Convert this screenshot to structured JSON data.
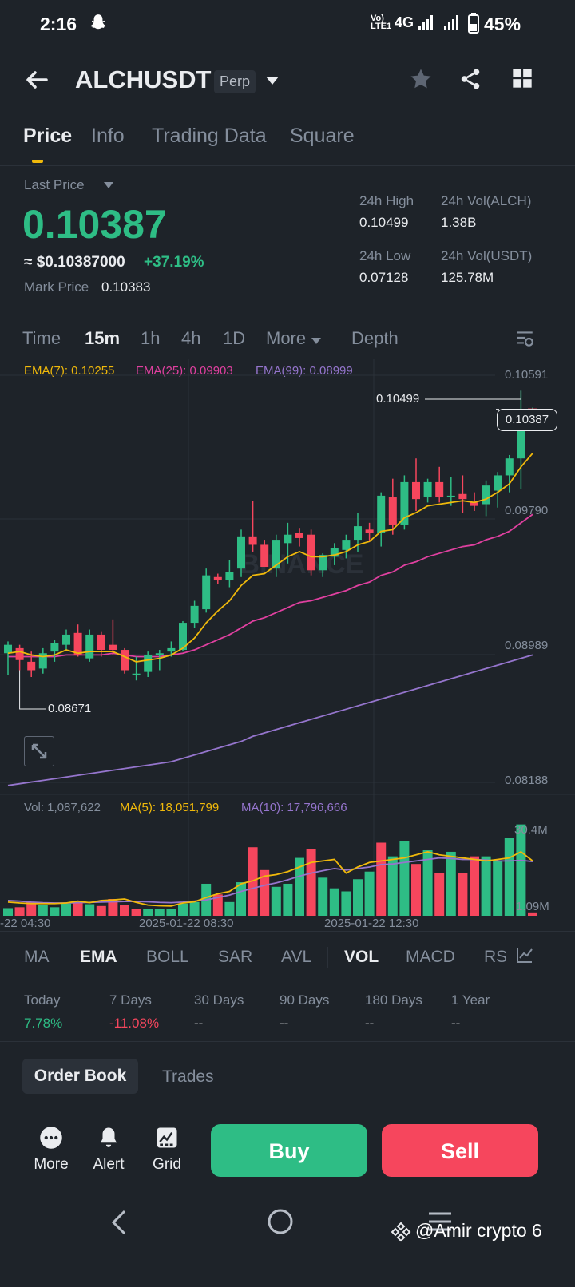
{
  "status": {
    "time": "2:16",
    "network": "4G",
    "volte": "Vo)) LTE1",
    "battery": "45%"
  },
  "header": {
    "symbol": "ALCHUSDT",
    "contract_badge": "Perp"
  },
  "tabs": [
    "Price",
    "Info",
    "Trading Data",
    "Square"
  ],
  "price": {
    "last_price_label": "Last Price",
    "last_price": "0.10387",
    "usd_value": "≈ $0.10387000",
    "change": "+37.19%",
    "mark_price_label": "Mark Price",
    "mark_price": "0.10383"
  },
  "stats": {
    "high_label": "24h High",
    "high": "0.10499",
    "vol_alch_label": "24h Vol(ALCH)",
    "vol_alch": "1.38B",
    "low_label": "24h Low",
    "low": "0.07128",
    "vol_usdt_label": "24h Vol(USDT)",
    "vol_usdt": "125.78M"
  },
  "timeframes": [
    "Time",
    "15m",
    "1h",
    "4h",
    "1D",
    "More",
    "Depth"
  ],
  "ema": {
    "ema7": "EMA(7): 0.10255",
    "ema25": "EMA(25): 0.09903",
    "ema99": "EMA(99): 0.08999"
  },
  "price_axis": [
    "0.10591",
    "0.09790",
    "0.08989",
    "0.08188"
  ],
  "chart_labels": {
    "high_marker": "0.10499",
    "low_marker": "0.08671",
    "current_tag": "0.10387",
    "watermark": "BINANCE"
  },
  "volume": {
    "vol": "Vol: 1,087,622",
    "ma5": "MA(5): 18,051,799",
    "ma10": "MA(10): 17,796,666",
    "axis_top": "30.4M",
    "axis_bottom": "1.09M"
  },
  "time_axis": [
    "-22 04:30",
    "2025-01-22 08:30",
    "2025-01-22 12:30"
  ],
  "indicators": [
    "MA",
    "EMA",
    "BOLL",
    "SAR",
    "AVL",
    "VOL",
    "MACD",
    "RSI"
  ],
  "performance": {
    "labels": [
      "Today",
      "7 Days",
      "30 Days",
      "90 Days",
      "180 Days",
      "1 Year"
    ],
    "values": [
      "7.78%",
      "-11.08%",
      "--",
      "--",
      "--",
      "--"
    ]
  },
  "book_tabs": [
    "Order Book",
    "Trades"
  ],
  "bottom_nav": {
    "more": "More",
    "alert": "Alert",
    "grid": "Grid",
    "buy": "Buy",
    "sell": "Sell"
  },
  "watermark_text": "@Amir crypto 6",
  "colors": {
    "up": "#2ebd85",
    "down": "#f6465d",
    "accent": "#f0b90b",
    "bg": "#1e2329"
  },
  "chart_data": {
    "type": "candlestick",
    "y_range": [
      0.08188,
      0.10591
    ],
    "candles": [
      {
        "o": 0.0895,
        "h": 0.0902,
        "l": 0.0882,
        "c": 0.09
      },
      {
        "o": 0.0898,
        "h": 0.09,
        "l": 0.0885,
        "c": 0.0891
      },
      {
        "o": 0.089,
        "h": 0.0896,
        "l": 0.0881,
        "c": 0.0885
      },
      {
        "o": 0.0886,
        "h": 0.0898,
        "l": 0.0883,
        "c": 0.0895
      },
      {
        "o": 0.0896,
        "h": 0.0903,
        "l": 0.089,
        "c": 0.0901
      },
      {
        "o": 0.09,
        "h": 0.0909,
        "l": 0.0897,
        "c": 0.0906
      },
      {
        "o": 0.0907,
        "h": 0.0912,
        "l": 0.0893,
        "c": 0.0894
      },
      {
        "o": 0.0892,
        "h": 0.0909,
        "l": 0.089,
        "c": 0.0906
      },
      {
        "o": 0.0906,
        "h": 0.0908,
        "l": 0.0893,
        "c": 0.0897
      },
      {
        "o": 0.09,
        "h": 0.0915,
        "l": 0.0894,
        "c": 0.0897
      },
      {
        "o": 0.0897,
        "h": 0.0898,
        "l": 0.0883,
        "c": 0.0885
      },
      {
        "o": 0.0882,
        "h": 0.0893,
        "l": 0.0879,
        "c": 0.0883
      },
      {
        "o": 0.0884,
        "h": 0.0896,
        "l": 0.0881,
        "c": 0.0894
      },
      {
        "o": 0.0894,
        "h": 0.0897,
        "l": 0.0885,
        "c": 0.0895
      },
      {
        "o": 0.0896,
        "h": 0.0902,
        "l": 0.0893,
        "c": 0.0898
      },
      {
        "o": 0.0897,
        "h": 0.0914,
        "l": 0.0896,
        "c": 0.0913
      },
      {
        "o": 0.0913,
        "h": 0.0926,
        "l": 0.091,
        "c": 0.0923
      },
      {
        "o": 0.0921,
        "h": 0.0945,
        "l": 0.0919,
        "c": 0.0941
      },
      {
        "o": 0.094,
        "h": 0.0942,
        "l": 0.0936,
        "c": 0.0938
      },
      {
        "o": 0.0938,
        "h": 0.095,
        "l": 0.0934,
        "c": 0.0943
      },
      {
        "o": 0.0945,
        "h": 0.0968,
        "l": 0.094,
        "c": 0.0964
      },
      {
        "o": 0.0964,
        "h": 0.0985,
        "l": 0.0955,
        "c": 0.0959
      },
      {
        "o": 0.0959,
        "h": 0.0962,
        "l": 0.0947,
        "c": 0.0946
      },
      {
        "o": 0.0945,
        "h": 0.0965,
        "l": 0.094,
        "c": 0.0962
      },
      {
        "o": 0.096,
        "h": 0.0972,
        "l": 0.0948,
        "c": 0.0965
      },
      {
        "o": 0.0966,
        "h": 0.0969,
        "l": 0.0958,
        "c": 0.0963
      },
      {
        "o": 0.0965,
        "h": 0.0968,
        "l": 0.0941,
        "c": 0.0944
      },
      {
        "o": 0.0944,
        "h": 0.0954,
        "l": 0.094,
        "c": 0.0953
      },
      {
        "o": 0.0952,
        "h": 0.096,
        "l": 0.0947,
        "c": 0.0957
      },
      {
        "o": 0.0956,
        "h": 0.0965,
        "l": 0.0951,
        "c": 0.0962
      },
      {
        "o": 0.0962,
        "h": 0.0978,
        "l": 0.0955,
        "c": 0.097
      },
      {
        "o": 0.0968,
        "h": 0.0972,
        "l": 0.0961,
        "c": 0.0966
      },
      {
        "o": 0.0966,
        "h": 0.099,
        "l": 0.0958,
        "c": 0.0988
      },
      {
        "o": 0.0987,
        "h": 0.0998,
        "l": 0.0965,
        "c": 0.0971
      },
      {
        "o": 0.0971,
        "h": 0.1,
        "l": 0.0968,
        "c": 0.0996
      },
      {
        "o": 0.0996,
        "h": 0.101,
        "l": 0.0979,
        "c": 0.0986
      },
      {
        "o": 0.0987,
        "h": 0.0998,
        "l": 0.0984,
        "c": 0.0996
      },
      {
        "o": 0.0996,
        "h": 0.1005,
        "l": 0.0984,
        "c": 0.0987
      },
      {
        "o": 0.0988,
        "h": 0.0999,
        "l": 0.0982,
        "c": 0.0988
      },
      {
        "o": 0.0989,
        "h": 0.1,
        "l": 0.0978,
        "c": 0.0986
      },
      {
        "o": 0.0984,
        "h": 0.099,
        "l": 0.0979,
        "c": 0.0982
      },
      {
        "o": 0.0983,
        "h": 0.0997,
        "l": 0.0976,
        "c": 0.0994
      },
      {
        "o": 0.0991,
        "h": 0.1002,
        "l": 0.0981,
        "c": 0.1
      },
      {
        "o": 0.1,
        "h": 0.1012,
        "l": 0.099,
        "c": 0.101
      },
      {
        "o": 0.101,
        "h": 0.105,
        "l": 0.0992,
        "c": 0.1039
      },
      {
        "o": 0.1039,
        "h": 0.104,
        "l": 0.1038,
        "c": 0.1039
      }
    ],
    "volumes": [
      {
        "v": 2.5,
        "up": true
      },
      {
        "v": 2.8,
        "up": false
      },
      {
        "v": 4.5,
        "up": false
      },
      {
        "v": 3.5,
        "up": true
      },
      {
        "v": 2.8,
        "up": true
      },
      {
        "v": 4.0,
        "up": true
      },
      {
        "v": 4.5,
        "up": false
      },
      {
        "v": 3.8,
        "up": true
      },
      {
        "v": 3.2,
        "up": false
      },
      {
        "v": 5.5,
        "up": false
      },
      {
        "v": 3.5,
        "up": false
      },
      {
        "v": 2.2,
        "up": false
      },
      {
        "v": 2.2,
        "up": true
      },
      {
        "v": 2.2,
        "up": true
      },
      {
        "v": 2.2,
        "up": true
      },
      {
        "v": 4.0,
        "up": true
      },
      {
        "v": 4.5,
        "up": true
      },
      {
        "v": 10.5,
        "up": true
      },
      {
        "v": 7.0,
        "up": false
      },
      {
        "v": 4.5,
        "up": true
      },
      {
        "v": 11.0,
        "up": true
      },
      {
        "v": 22.5,
        "up": false
      },
      {
        "v": 15.0,
        "up": false
      },
      {
        "v": 9.5,
        "up": true
      },
      {
        "v": 10.5,
        "up": true
      },
      {
        "v": 19.0,
        "up": true
      },
      {
        "v": 22.0,
        "up": false
      },
      {
        "v": 12.5,
        "up": true
      },
      {
        "v": 9.0,
        "up": true
      },
      {
        "v": 8.0,
        "up": true
      },
      {
        "v": 12.0,
        "up": true
      },
      {
        "v": 14.5,
        "up": true
      },
      {
        "v": 24.0,
        "up": false
      },
      {
        "v": 19.5,
        "up": true
      },
      {
        "v": 24.5,
        "up": true
      },
      {
        "v": 17.0,
        "up": false
      },
      {
        "v": 21.5,
        "up": true
      },
      {
        "v": 14.0,
        "up": false
      },
      {
        "v": 21.0,
        "up": true
      },
      {
        "v": 14.0,
        "up": false
      },
      {
        "v": 19.5,
        "up": false
      },
      {
        "v": 19.5,
        "up": true
      },
      {
        "v": 18.0,
        "up": true
      },
      {
        "v": 25.5,
        "up": true
      },
      {
        "v": 30.0,
        "up": true
      },
      {
        "v": 1.09,
        "up": false
      }
    ],
    "volume_range": [
      0,
      32
    ],
    "ema7": [
      0.0895,
      0.0896,
      0.0894,
      0.0893,
      0.0894,
      0.0897,
      0.0895,
      0.0896,
      0.0896,
      0.0896,
      0.0893,
      0.089,
      0.0891,
      0.0892,
      0.0894,
      0.0898,
      0.0904,
      0.0913,
      0.092,
      0.0926,
      0.0935,
      0.0941,
      0.0942,
      0.0947,
      0.0952,
      0.0955,
      0.0952,
      0.0952,
      0.0953,
      0.0955,
      0.0959,
      0.0961,
      0.0967,
      0.0968,
      0.0975,
      0.0978,
      0.0982,
      0.0983,
      0.0984,
      0.0985,
      0.0984,
      0.0986,
      0.099,
      0.0995,
      0.1005,
      0.1013
    ],
    "ema25": [
      0.0893,
      0.0893,
      0.0893,
      0.0893,
      0.0893,
      0.0894,
      0.0894,
      0.0894,
      0.0894,
      0.0895,
      0.0894,
      0.0893,
      0.0893,
      0.0893,
      0.0894,
      0.0895,
      0.0897,
      0.09,
      0.0903,
      0.0906,
      0.091,
      0.0914,
      0.0916,
      0.0919,
      0.0922,
      0.0925,
      0.0926,
      0.0928,
      0.093,
      0.0932,
      0.0935,
      0.0937,
      0.0941,
      0.0943,
      0.0947,
      0.0949,
      0.0952,
      0.0954,
      0.0956,
      0.0958,
      0.0959,
      0.0962,
      0.0964,
      0.0967,
      0.0972,
      0.0977
    ],
    "ema99": [
      0.0817,
      0.0818,
      0.0819,
      0.082,
      0.0821,
      0.0822,
      0.0823,
      0.0824,
      0.0825,
      0.0826,
      0.0827,
      0.0828,
      0.0829,
      0.083,
      0.0831,
      0.0833,
      0.0835,
      0.0837,
      0.0839,
      0.0841,
      0.0843,
      0.0846,
      0.0848,
      0.085,
      0.0852,
      0.0854,
      0.0856,
      0.0858,
      0.086,
      0.0862,
      0.0864,
      0.0866,
      0.0868,
      0.087,
      0.0872,
      0.0874,
      0.0876,
      0.0878,
      0.088,
      0.0882,
      0.0884,
      0.0886,
      0.0888,
      0.089,
      0.0892,
      0.0894
    ],
    "ma5_vol": [
      4.5,
      4.2,
      4.0,
      4.0,
      4.0,
      4.2,
      4.8,
      4.3,
      5.0,
      5.2,
      5.5,
      4.4,
      3.5,
      3.3,
      3.2,
      4.2,
      4.6,
      6.0,
      7.2,
      8.0,
      10.5,
      11.5,
      13.0,
      13.5,
      14.5,
      16.0,
      17.5,
      18.0,
      18.5,
      14.0,
      16.0,
      17.5,
      18.0,
      18.5,
      19.0,
      20.0,
      21.0,
      20.0,
      19.5,
      19.0,
      18.5,
      18.0,
      18.5,
      19.0,
      21.0,
      18.0
    ],
    "ma10_vol": [
      5.0,
      4.8,
      4.5,
      4.3,
      4.2,
      4.2,
      4.3,
      4.4,
      4.5,
      4.6,
      4.7,
      4.7,
      4.6,
      4.4,
      4.3,
      4.5,
      4.8,
      5.2,
      6.0,
      6.8,
      8.0,
      9.0,
      10.0,
      10.8,
      11.8,
      13.0,
      14.0,
      14.8,
      15.5,
      15.0,
      15.5,
      16.0,
      16.8,
      17.0,
      17.5,
      18.0,
      18.5,
      19.0,
      18.8,
      18.5,
      18.5,
      18.3,
      18.0,
      18.0,
      18.2,
      17.8
    ]
  }
}
